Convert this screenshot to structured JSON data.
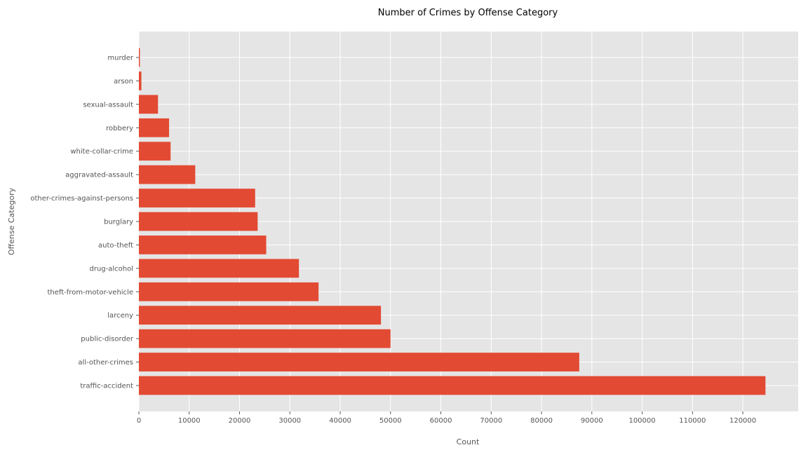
{
  "chart_data": {
    "type": "bar",
    "orientation": "horizontal",
    "title": "Number of Crimes by Offense Category",
    "xlabel": "Count",
    "ylabel": "Offense Category",
    "xlim": [
      0,
      131000
    ],
    "xticks": [
      0,
      10000,
      20000,
      30000,
      40000,
      50000,
      60000,
      70000,
      80000,
      90000,
      100000,
      110000,
      120000
    ],
    "grid": true,
    "bar_color": "#E24A33",
    "background_color": "#E5E5E5",
    "categories": [
      "murder",
      "arson",
      "sexual-assault",
      "robbery",
      "white-collar-crime",
      "aggravated-assault",
      "other-crimes-against-persons",
      "burglary",
      "auto-theft",
      "drug-alcohol",
      "theft-from-motor-vehicle",
      "larceny",
      "public-disorder",
      "all-other-crimes",
      "traffic-accident"
    ],
    "values": [
      200,
      500,
      3800,
      6000,
      6300,
      11200,
      23100,
      23600,
      25300,
      31800,
      35700,
      48100,
      50000,
      87500,
      124500
    ]
  }
}
